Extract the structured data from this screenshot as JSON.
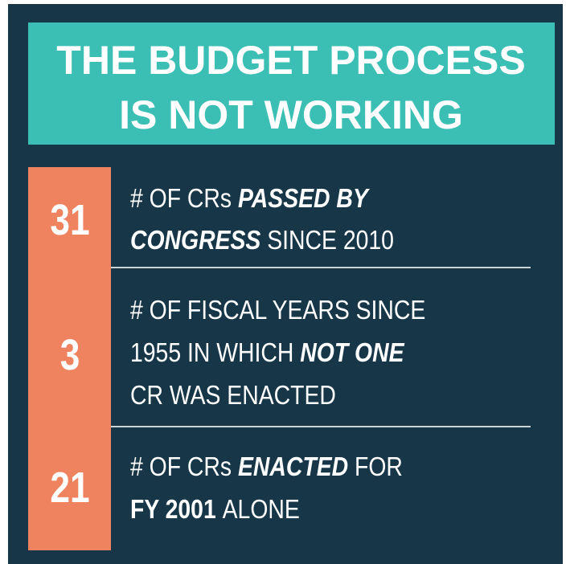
{
  "header": {
    "title": [
      "THE BUDGET PROCESS",
      "IS NOT WORKING"
    ]
  },
  "items": [
    {
      "number": 31,
      "lines": [
        [
          {
            "text": "# OF CRs",
            "style": "normal"
          },
          {
            "text": "PASSED BY",
            "style": "bold-italic"
          }
        ],
        [
          {
            "text": "CONGRESS",
            "style": "bold-italic"
          },
          {
            "text": "SINCE 2010",
            "style": "normal"
          }
        ]
      ]
    },
    {
      "number": 3,
      "lines": [
        [
          {
            "text": "# OF FISCAL YEARS SINCE",
            "style": "normal"
          }
        ],
        [
          {
            "text": "1955 IN WHICH",
            "style": "normal"
          },
          {
            "text": "NOT ONE",
            "style": "bold-italic"
          }
        ],
        [
          {
            "text": "CR WAS ENACTED",
            "style": "normal"
          }
        ]
      ]
    },
    {
      "number": 21,
      "lines": [
        [
          {
            "text": "# OF CRs",
            "style": "normal"
          },
          {
            "text": "ENACTED",
            "style": "bold-italic"
          },
          {
            "text": "FOR",
            "style": "normal"
          }
        ],
        [
          {
            "text": "FY 2001",
            "style": "bold"
          },
          {
            "text": "ALONE",
            "style": "normal"
          }
        ]
      ]
    }
  ]
}
